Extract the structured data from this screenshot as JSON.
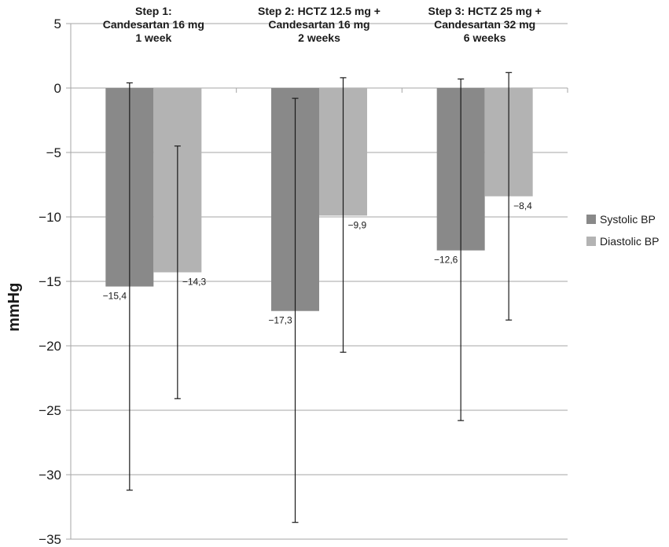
{
  "chart_data": {
    "type": "bar",
    "ylabel": "mmHg",
    "ylim": [
      -35,
      5
    ],
    "y_ticks": [
      "5",
      "0",
      "-5",
      "-10",
      "-15",
      "-20",
      "-25",
      "-30",
      "-35"
    ],
    "grid": true,
    "legend_position": "right",
    "categories": [
      [
        "Step 1:",
        "Candesartan 16 mg",
        "1 week"
      ],
      [
        "Step 2: HCTZ 12.5 mg +",
        "Candesartan 16 mg",
        "2 weeks"
      ],
      [
        "Step 3: HCTZ 25 mg +",
        "Candesartan 32 mg",
        "6 weeks"
      ]
    ],
    "series": [
      {
        "name": "Systolic BP",
        "color": "#898989",
        "values": [
          -15.4,
          -17.3,
          -12.6
        ],
        "labels": [
          "−15,4",
          "−17,3",
          "−12,6"
        ],
        "error_high": [
          0.4,
          -0.8,
          0.7
        ],
        "error_low": [
          -31.2,
          -33.7,
          -25.8
        ]
      },
      {
        "name": "Diastolic BP",
        "color": "#b3b3b3",
        "values": [
          -14.3,
          -9.9,
          -8.4
        ],
        "labels": [
          "−14,3",
          "−9,9",
          "−8,4"
        ],
        "error_high": [
          -4.5,
          0.8,
          1.2
        ],
        "error_low": [
          -24.1,
          -20.5,
          -18.0
        ]
      }
    ]
  }
}
